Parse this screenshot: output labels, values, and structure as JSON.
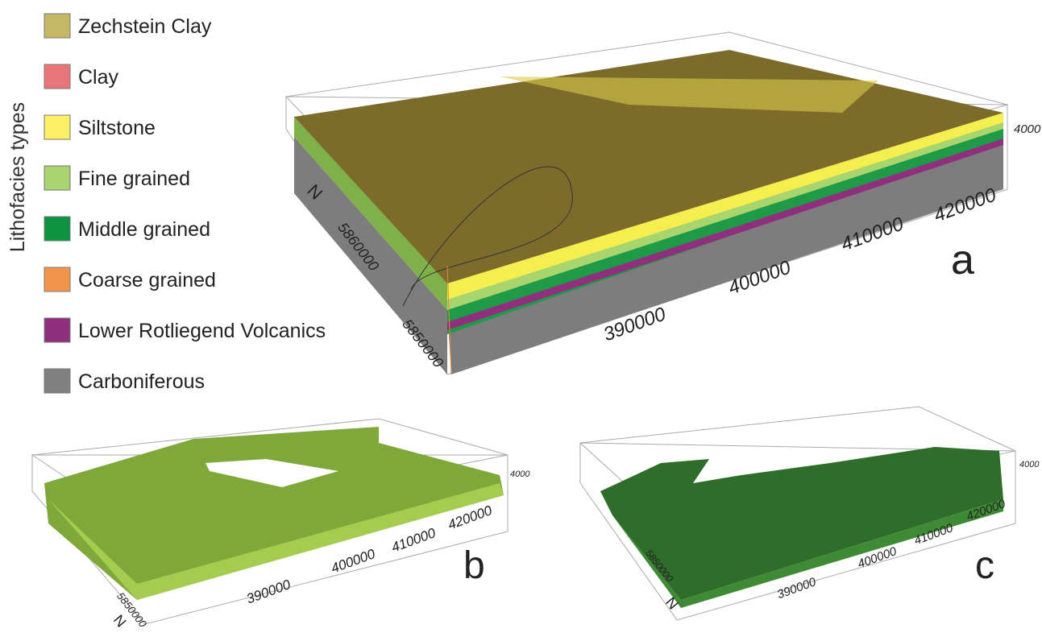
{
  "legend": {
    "title": "Lithofacies types",
    "items": [
      {
        "label": "Zechstein Clay",
        "color": "#c4b866"
      },
      {
        "label": "Clay",
        "color": "#e8757a"
      },
      {
        "label": "Siltstone",
        "color": "#faf264"
      },
      {
        "label": "Fine grained",
        "color": "#a8d56e"
      },
      {
        "label": "Middle grained",
        "color": "#0e9340"
      },
      {
        "label": "Coarse grained",
        "color": "#f0954a"
      },
      {
        "label": "Lower Rotliegend Volcanics",
        "color": "#8f2f7e"
      },
      {
        "label": "Carboniferous",
        "color": "#808080"
      }
    ]
  },
  "panels": [
    {
      "label": "a",
      "north": "N",
      "x_ticks": [
        390000,
        400000,
        410000,
        420000
      ],
      "z_ticks": [
        4000
      ],
      "y_ticks": [
        5850000,
        5860000
      ]
    },
    {
      "label": "b",
      "north": "N",
      "x_ticks": [
        390000,
        400000,
        410000,
        420000
      ],
      "z_ticks": [
        4000
      ],
      "y_ticks": [
        5850000
      ]
    },
    {
      "label": "c",
      "north": "N",
      "x_ticks": [
        390000,
        400000,
        410000,
        420000
      ],
      "z_ticks": [
        4000
      ],
      "y_ticks": [
        5850000
      ]
    }
  ]
}
